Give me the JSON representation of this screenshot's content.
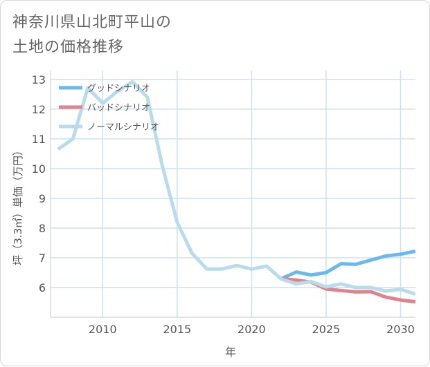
{
  "title": {
    "line1": "神奈川県山北町平山の",
    "line2": "土地の価格推移"
  },
  "chart_data": {
    "type": "line",
    "xlabel": "年",
    "ylabel": "坪（3.3㎡）単価（万円）",
    "xlim": [
      2006.5,
      2031
    ],
    "ylim": [
      5,
      13.3
    ],
    "xticks": [
      2010,
      2015,
      2020,
      2025,
      2030
    ],
    "yticks": [
      6,
      7,
      8,
      9,
      10,
      11,
      12,
      13
    ],
    "grid": true,
    "legend_position": "top-left",
    "series": [
      {
        "name": "グッドシナリオ",
        "color": "#6ab9ee",
        "x": [
          2022,
          2023,
          2024,
          2025,
          2026,
          2027,
          2028,
          2029,
          2030,
          2031
        ],
        "y": [
          6.3,
          6.52,
          6.42,
          6.5,
          6.8,
          6.78,
          6.92,
          7.06,
          7.12,
          7.22
        ]
      },
      {
        "name": "バッドシナリオ",
        "color": "#e0838f",
        "x": [
          2022,
          2023,
          2024,
          2025,
          2026,
          2027,
          2028,
          2029,
          2030,
          2031
        ],
        "y": [
          6.3,
          6.25,
          6.18,
          5.95,
          5.9,
          5.85,
          5.86,
          5.68,
          5.58,
          5.52
        ]
      },
      {
        "name": "ノーマルシナリオ",
        "color": "#b9dcec",
        "x": [
          2007,
          2008,
          2009,
          2010,
          2011,
          2012,
          2013,
          2014,
          2015,
          2016,
          2017,
          2018,
          2019,
          2020,
          2021,
          2022,
          2023,
          2024,
          2025,
          2026,
          2027,
          2028,
          2029,
          2030,
          2031
        ],
        "y": [
          10.65,
          11.0,
          12.72,
          12.2,
          12.6,
          12.92,
          12.4,
          10.1,
          8.2,
          7.15,
          6.62,
          6.62,
          6.74,
          6.62,
          6.72,
          6.28,
          6.12,
          6.2,
          6.02,
          6.12,
          6.0,
          6.0,
          5.88,
          5.94,
          5.78
        ]
      }
    ]
  }
}
